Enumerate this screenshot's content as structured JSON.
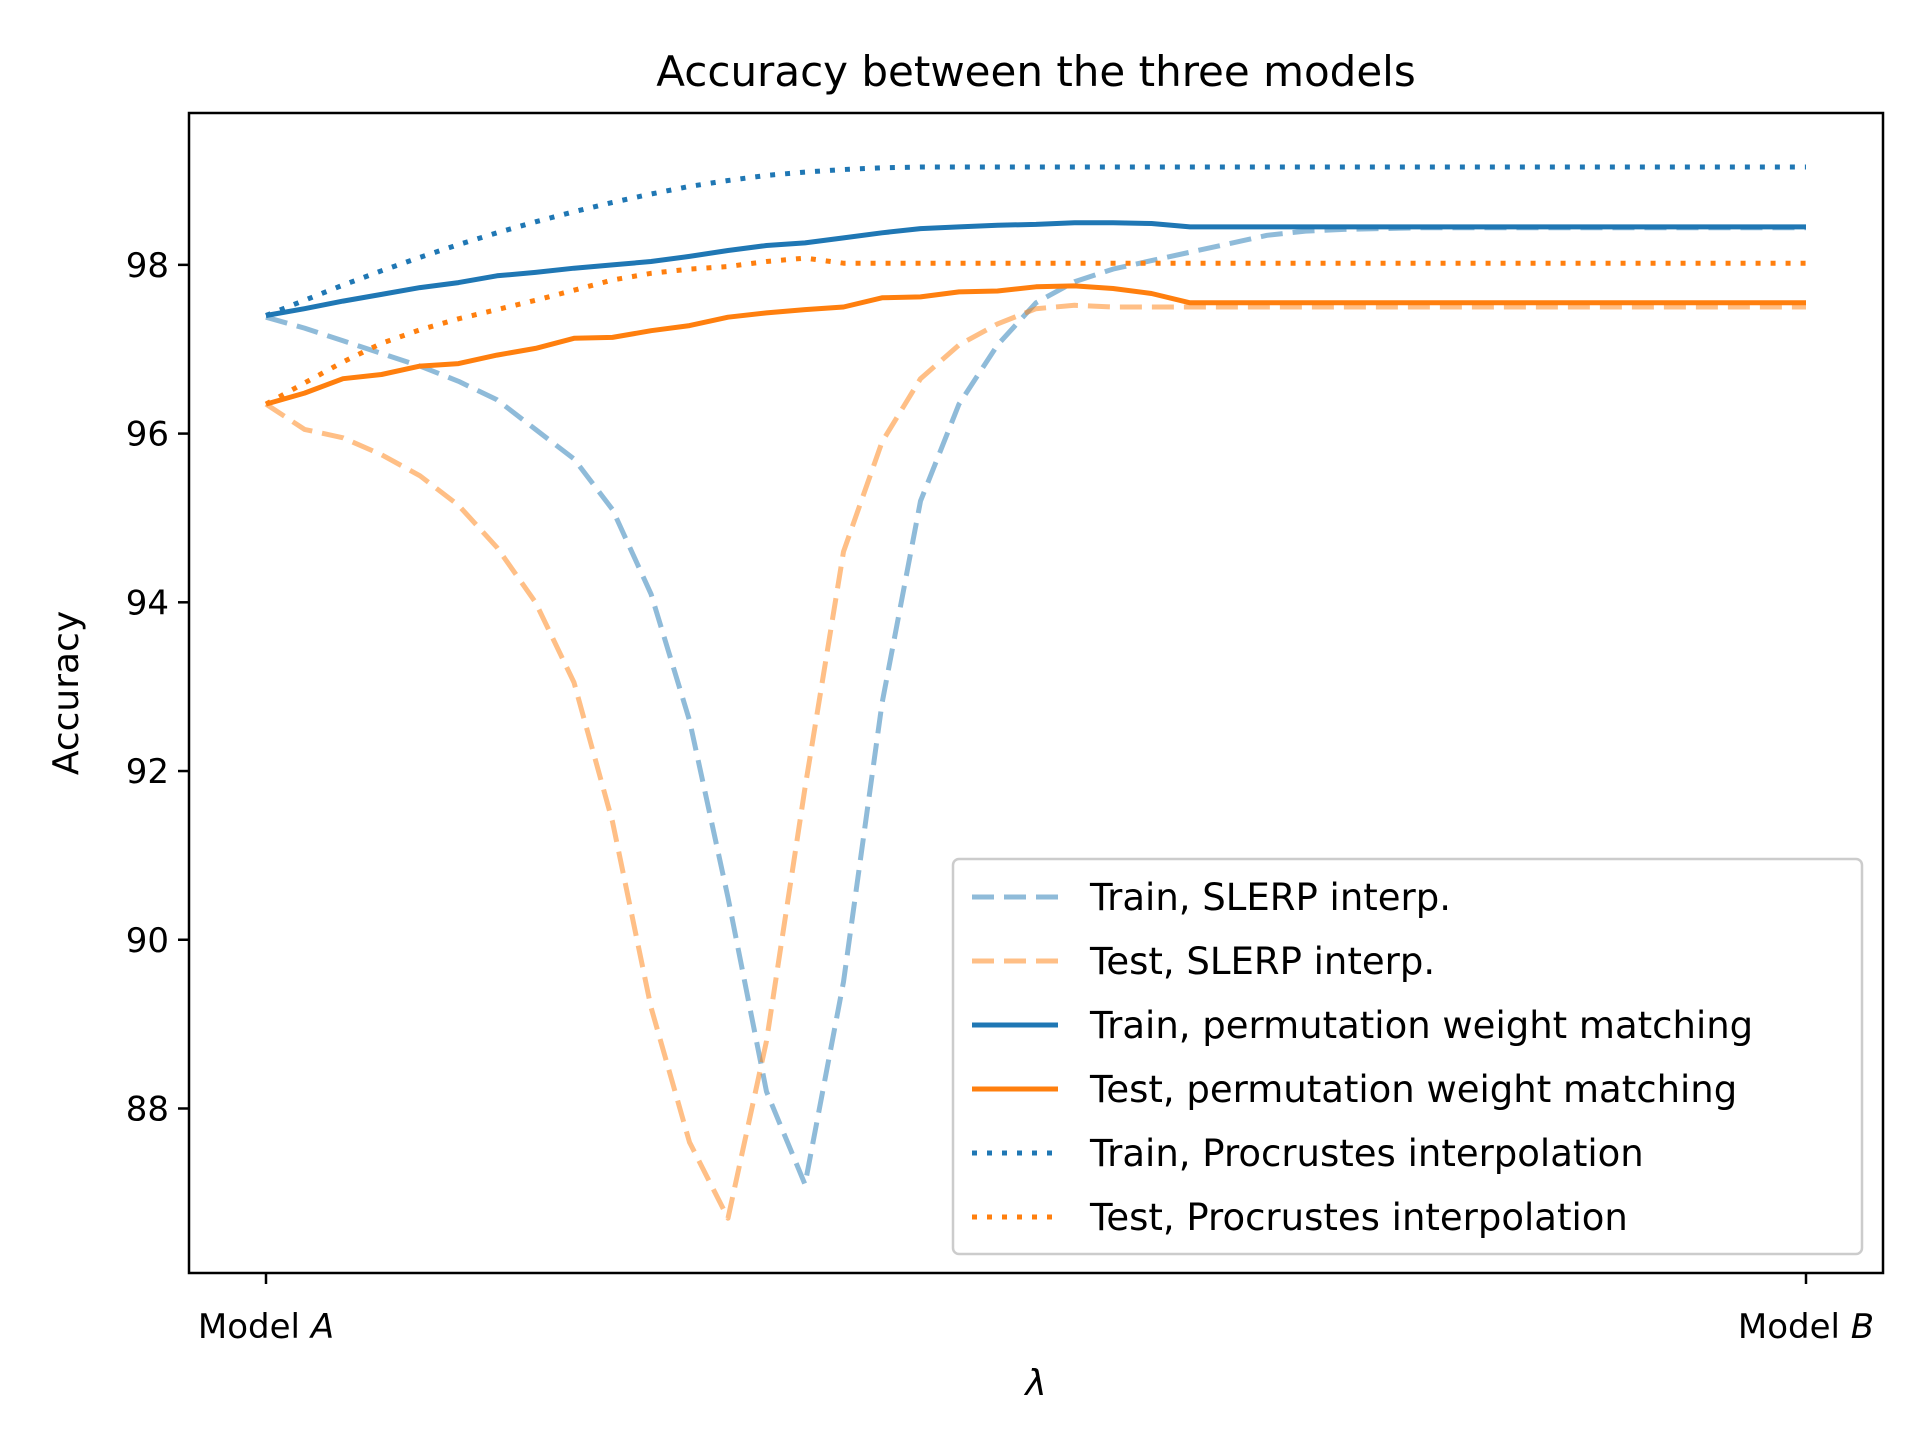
{
  "chart_data": {
    "type": "line",
    "title": "Accuracy between the three models",
    "xlabel": "λ",
    "ylabel": "Accuracy",
    "x_tick_labels": [
      {
        "prefix": "Model ",
        "var": "A"
      },
      {
        "prefix": "Model ",
        "var": "B"
      }
    ],
    "xlim": [
      -0.05,
      1.05
    ],
    "ylim": [
      86.05,
      99.8
    ],
    "y_ticks": [
      88,
      90,
      92,
      94,
      96,
      98
    ],
    "grid": false,
    "legend": "bottom-right",
    "x": [
      0.0,
      0.025,
      0.05,
      0.075,
      0.1,
      0.125,
      0.15,
      0.175,
      0.2,
      0.225,
      0.25,
      0.275,
      0.3,
      0.325,
      0.35,
      0.375,
      0.4,
      0.425,
      0.45,
      0.475,
      0.5,
      0.525,
      0.55,
      0.575,
      0.6,
      0.625,
      0.65,
      0.675,
      0.7,
      0.725,
      0.75,
      0.775,
      0.8,
      0.825,
      0.85,
      0.875,
      0.9,
      0.925,
      0.95,
      0.975,
      1.0
    ],
    "series": [
      {
        "name": "Train, SLERP interp.",
        "color": "#1f77b4",
        "opacity": 0.5,
        "style": "dashed",
        "values": [
          97.38,
          97.25,
          97.1,
          96.95,
          96.8,
          96.62,
          96.4,
          96.05,
          95.7,
          95.1,
          94.1,
          92.6,
          90.5,
          88.2,
          87.1,
          89.5,
          92.8,
          95.2,
          96.35,
          97.05,
          97.55,
          97.8,
          97.95,
          98.05,
          98.15,
          98.25,
          98.35,
          98.4,
          98.42,
          98.43,
          98.44,
          98.44,
          98.44,
          98.44,
          98.44,
          98.44,
          98.44,
          98.44,
          98.44,
          98.44,
          98.44
        ]
      },
      {
        "name": "Test, SLERP interp.",
        "color": "#ff7f0e",
        "opacity": 0.5,
        "style": "dashed",
        "values": [
          96.35,
          96.05,
          95.95,
          95.75,
          95.5,
          95.15,
          94.65,
          94.0,
          93.05,
          91.4,
          89.2,
          87.6,
          86.7,
          88.8,
          91.8,
          94.6,
          95.9,
          96.65,
          97.05,
          97.3,
          97.48,
          97.52,
          97.5,
          97.5,
          97.5,
          97.5,
          97.5,
          97.5,
          97.5,
          97.5,
          97.5,
          97.5,
          97.5,
          97.5,
          97.5,
          97.5,
          97.5,
          97.5,
          97.5,
          97.5,
          97.5
        ]
      },
      {
        "name": "Train, permutation weight matching",
        "color": "#1f77b4",
        "opacity": 1,
        "style": "solid",
        "values": [
          97.4,
          97.48,
          97.57,
          97.65,
          97.73,
          97.79,
          97.87,
          97.91,
          97.96,
          98.0,
          98.04,
          98.1,
          98.17,
          98.23,
          98.26,
          98.32,
          98.38,
          98.43,
          98.45,
          98.47,
          98.48,
          98.5,
          98.5,
          98.49,
          98.45,
          98.45,
          98.45,
          98.45,
          98.45,
          98.45,
          98.45,
          98.45,
          98.45,
          98.45,
          98.45,
          98.45,
          98.45,
          98.45,
          98.45,
          98.45,
          98.45
        ]
      },
      {
        "name": "Test, permutation weight matching",
        "color": "#ff7f0e",
        "opacity": 1,
        "style": "solid",
        "values": [
          96.35,
          96.48,
          96.65,
          96.7,
          96.8,
          96.83,
          96.93,
          97.01,
          97.13,
          97.14,
          97.22,
          97.28,
          97.38,
          97.43,
          97.47,
          97.5,
          97.61,
          97.62,
          97.68,
          97.69,
          97.74,
          97.75,
          97.72,
          97.66,
          97.55,
          97.55,
          97.55,
          97.55,
          97.55,
          97.55,
          97.55,
          97.55,
          97.55,
          97.55,
          97.55,
          97.55,
          97.55,
          97.55,
          97.55,
          97.55,
          97.55
        ]
      },
      {
        "name": "Train, Procrustes interpolation",
        "color": "#1f77b4",
        "opacity": 1,
        "style": "dotted",
        "values": [
          97.4,
          97.58,
          97.76,
          97.93,
          98.09,
          98.24,
          98.38,
          98.51,
          98.63,
          98.74,
          98.84,
          98.93,
          99.0,
          99.06,
          99.1,
          99.13,
          99.15,
          99.16,
          99.16,
          99.16,
          99.16,
          99.16,
          99.16,
          99.16,
          99.16,
          99.16,
          99.16,
          99.16,
          99.16,
          99.16,
          99.16,
          99.16,
          99.16,
          99.16,
          99.16,
          99.16,
          99.16,
          99.16,
          99.16,
          99.16,
          99.16
        ]
      },
      {
        "name": "Test, Procrustes interpolation",
        "color": "#ff7f0e",
        "opacity": 1,
        "style": "dotted",
        "values": [
          96.35,
          96.6,
          96.85,
          97.07,
          97.23,
          97.36,
          97.47,
          97.58,
          97.7,
          97.82,
          97.9,
          97.95,
          97.98,
          98.04,
          98.08,
          98.02,
          98.02,
          98.02,
          98.02,
          98.02,
          98.02,
          98.02,
          98.02,
          98.02,
          98.02,
          98.02,
          98.02,
          98.02,
          98.02,
          98.02,
          98.02,
          98.02,
          98.02,
          98.02,
          98.02,
          98.02,
          98.02,
          98.02,
          98.02,
          98.02,
          98.02
        ]
      }
    ]
  }
}
